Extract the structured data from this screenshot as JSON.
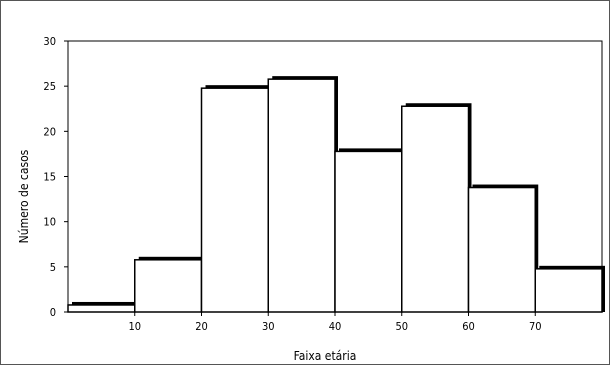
{
  "chart_data": {
    "type": "bar",
    "title": "",
    "xlabel": "Faixa etária",
    "ylabel": "Número de casos",
    "bins": [
      {
        "from": 0,
        "to": 10,
        "value": 1
      },
      {
        "from": 10,
        "to": 20,
        "value": 6
      },
      {
        "from": 20,
        "to": 30,
        "value": 25
      },
      {
        "from": 30,
        "to": 40,
        "value": 26
      },
      {
        "from": 40,
        "to": 50,
        "value": 18
      },
      {
        "from": 50,
        "to": 60,
        "value": 23
      },
      {
        "from": 60,
        "to": 70,
        "value": 14
      },
      {
        "from": 70,
        "to": 80,
        "value": 5
      }
    ],
    "x_ticks": [
      10,
      20,
      30,
      40,
      50,
      60,
      70
    ],
    "y_ticks": [
      0,
      5,
      10,
      15,
      20,
      25,
      30
    ],
    "xlim": [
      0,
      80
    ],
    "ylim": [
      0,
      30
    ],
    "grid": false,
    "legend": "none",
    "colors": {
      "bar_fill": "#ffffff",
      "bar_stroke": "#000000",
      "shadow": "#000000"
    }
  }
}
